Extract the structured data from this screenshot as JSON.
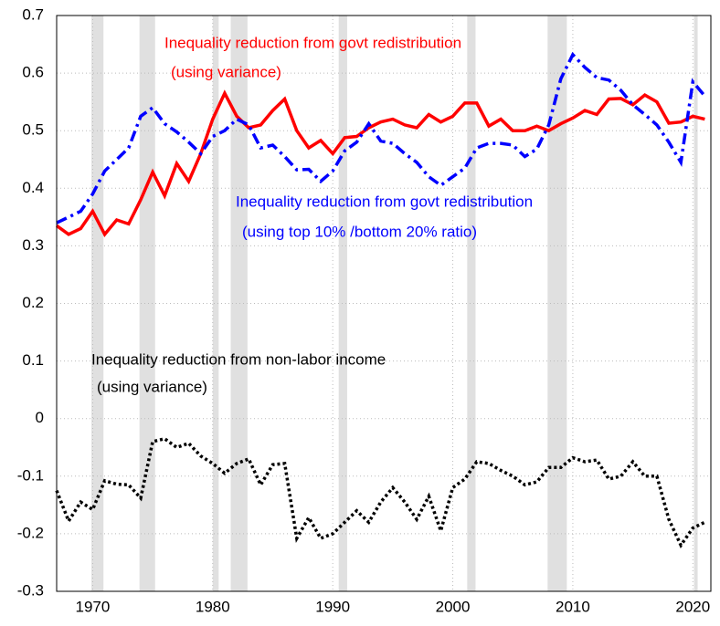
{
  "chart_data": {
    "type": "line",
    "x": [
      1967,
      1968,
      1969,
      1970,
      1971,
      1972,
      1973,
      1974,
      1975,
      1976,
      1977,
      1978,
      1979,
      1980,
      1981,
      1982,
      1983,
      1984,
      1985,
      1986,
      1987,
      1988,
      1989,
      1990,
      1991,
      1992,
      1993,
      1994,
      1995,
      1996,
      1997,
      1998,
      1999,
      2000,
      2001,
      2002,
      2003,
      2004,
      2005,
      2006,
      2007,
      2008,
      2009,
      2010,
      2011,
      2012,
      2013,
      2014,
      2015,
      2016,
      2017,
      2018,
      2019,
      2020,
      2021
    ],
    "series": [
      {
        "color": "#ff0000",
        "style": "solid",
        "values": [
          0.335,
          0.32,
          0.33,
          0.36,
          0.32,
          0.345,
          0.338,
          0.38,
          0.428,
          0.387,
          0.443,
          0.412,
          0.46,
          0.52,
          0.565,
          0.525,
          0.505,
          0.51,
          0.535,
          0.555,
          0.5,
          0.47,
          0.483,
          0.46,
          0.488,
          0.49,
          0.505,
          0.515,
          0.52,
          0.51,
          0.505,
          0.528,
          0.515,
          0.525,
          0.548,
          0.548,
          0.508,
          0.52,
          0.5,
          0.5,
          0.508,
          0.5,
          0.512,
          0.522,
          0.535,
          0.528,
          0.555,
          0.556,
          0.545,
          0.562,
          0.55,
          0.513,
          0.515,
          0.525,
          0.52
        ]
      },
      {
        "color": "#0000ff",
        "style": "dashdot",
        "values": [
          0.34,
          0.35,
          0.36,
          0.39,
          0.43,
          0.45,
          0.47,
          0.525,
          0.54,
          0.512,
          0.498,
          0.48,
          0.46,
          0.49,
          0.5,
          0.52,
          0.51,
          0.47,
          0.475,
          0.455,
          0.432,
          0.433,
          0.412,
          0.43,
          0.465,
          0.48,
          0.512,
          0.482,
          0.478,
          0.46,
          0.445,
          0.42,
          0.405,
          0.42,
          0.435,
          0.47,
          0.478,
          0.478,
          0.475,
          0.455,
          0.468,
          0.51,
          0.59,
          0.632,
          0.61,
          0.592,
          0.588,
          0.57,
          0.545,
          0.528,
          0.51,
          0.48,
          0.445,
          0.585,
          0.56
        ]
      },
      {
        "color": "#000000",
        "style": "dotted",
        "values": [
          -0.125,
          -0.178,
          -0.145,
          -0.158,
          -0.108,
          -0.114,
          -0.115,
          -0.138,
          -0.04,
          -0.035,
          -0.05,
          -0.043,
          -0.065,
          -0.078,
          -0.095,
          -0.078,
          -0.07,
          -0.115,
          -0.08,
          -0.078,
          -0.208,
          -0.172,
          -0.208,
          -0.2,
          -0.18,
          -0.16,
          -0.18,
          -0.145,
          -0.12,
          -0.145,
          -0.175,
          -0.135,
          -0.195,
          -0.12,
          -0.105,
          -0.075,
          -0.078,
          -0.09,
          -0.1,
          -0.115,
          -0.11,
          -0.085,
          -0.085,
          -0.068,
          -0.075,
          -0.072,
          -0.105,
          -0.1,
          -0.075,
          -0.1,
          -0.1,
          -0.175,
          -0.22,
          -0.19,
          -0.18
        ]
      }
    ],
    "annotations": [
      {
        "color": "#ff0000",
        "lines": [
          "Inequality reduction from govt redistribution",
          "(using variance)"
        ]
      },
      {
        "color": "#0000ff",
        "lines": [
          "Inequality reduction from govt redistribution",
          "(using top 10% /bottom 20% ratio)"
        ]
      },
      {
        "color": "#000000",
        "lines": [
          "Inequality reduction from non-labor income",
          "(using variance)"
        ]
      }
    ],
    "recessions": [
      [
        1969.9,
        1970.9
      ],
      [
        1973.9,
        1975.2
      ],
      [
        1980.0,
        1980.5
      ],
      [
        1981.5,
        1982.9
      ],
      [
        1990.5,
        1991.2
      ],
      [
        2001.2,
        2001.9
      ],
      [
        2007.9,
        2009.5
      ],
      [
        2020.1,
        2020.4
      ]
    ],
    "recession_color": "#e0e0e0",
    "xlim": [
      1967,
      2021.5
    ],
    "xticks": [
      1970,
      1980,
      1990,
      2000,
      2010,
      2020
    ],
    "ylim": [
      -0.3,
      0.7
    ],
    "yticks": [
      -0.3,
      -0.2,
      -0.1,
      0,
      0.1,
      0.2,
      0.3,
      0.4,
      0.5,
      0.6,
      0.7
    ],
    "grid": true
  }
}
